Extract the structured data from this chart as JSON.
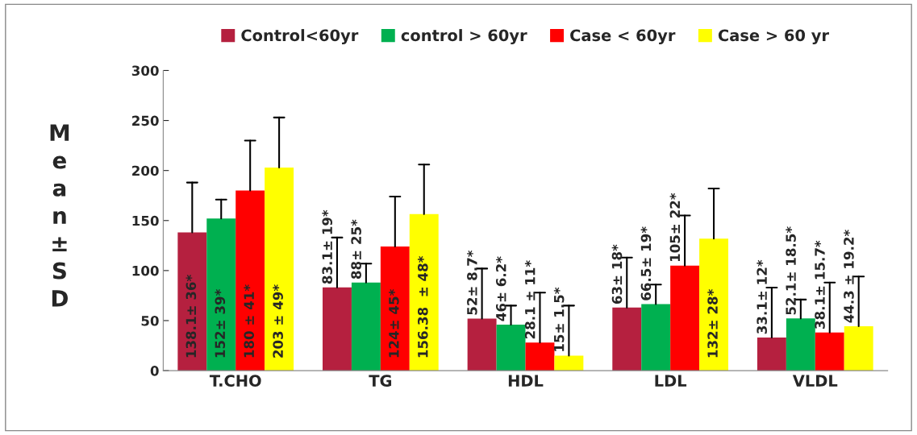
{
  "chart_data": {
    "type": "bar",
    "categories": [
      "T.CHO",
      "TG",
      "HDL",
      "LDL",
      "VLDL"
    ],
    "ylabel": "Mean±SD",
    "ylim": [
      0,
      300
    ],
    "yticks": [
      0,
      50,
      100,
      150,
      200,
      250,
      300
    ],
    "grid": false,
    "legend": "top",
    "series": [
      {
        "name": "Control<60yr",
        "color": "#b5203f",
        "values": [
          138.1,
          83.1,
          52,
          63,
          33.1
        ],
        "errors": [
          [
            138.1,
            188
          ],
          [
            83.1,
            133
          ],
          [
            52,
            102
          ],
          [
            63,
            113
          ],
          [
            33.1,
            83
          ]
        ],
        "value_labels": [
          "138.1± 36*",
          "83.1± 19*",
          "52± 8.7*",
          "63± 18*",
          "33.1± 12*"
        ]
      },
      {
        "name": "control > 60yr",
        "color": "#00b050",
        "values": [
          152,
          88,
          46,
          66.5,
          52.1
        ],
        "errors": [
          [
            152,
            171
          ],
          [
            88,
            107
          ],
          [
            46,
            65
          ],
          [
            66.5,
            86
          ],
          [
            52.1,
            71
          ]
        ],
        "value_labels": [
          "152± 39*",
          "88± 25*",
          "46± 6.2*",
          "66.5± 19*",
          "52.1± 18.5*"
        ]
      },
      {
        "name": "Case < 60yr",
        "color": "#ff0000",
        "values": [
          180,
          124,
          28.1,
          105,
          38.1
        ],
        "errors": [
          [
            180,
            230
          ],
          [
            124,
            174
          ],
          [
            28.1,
            78
          ],
          [
            105,
            155
          ],
          [
            38.1,
            88
          ]
        ],
        "value_labels": [
          "180 ± 41*",
          "124± 45*",
          "28.1 ± 11*",
          "105± 22*",
          "38.1± 15.7*"
        ]
      },
      {
        "name": "Case > 60 yr",
        "color": "#ffff00",
        "values": [
          203,
          156.38,
          15,
          132,
          44.3
        ],
        "errors": [
          [
            203,
            253
          ],
          [
            156.38,
            206
          ],
          [
            15,
            65
          ],
          [
            132,
            182
          ],
          [
            44.3,
            94
          ]
        ],
        "value_labels": [
          "203 ± 49*",
          "156.38  ± 48*",
          "15± 1.5*",
          "132± 28*",
          "44.3 ± 19.2*"
        ]
      }
    ]
  }
}
